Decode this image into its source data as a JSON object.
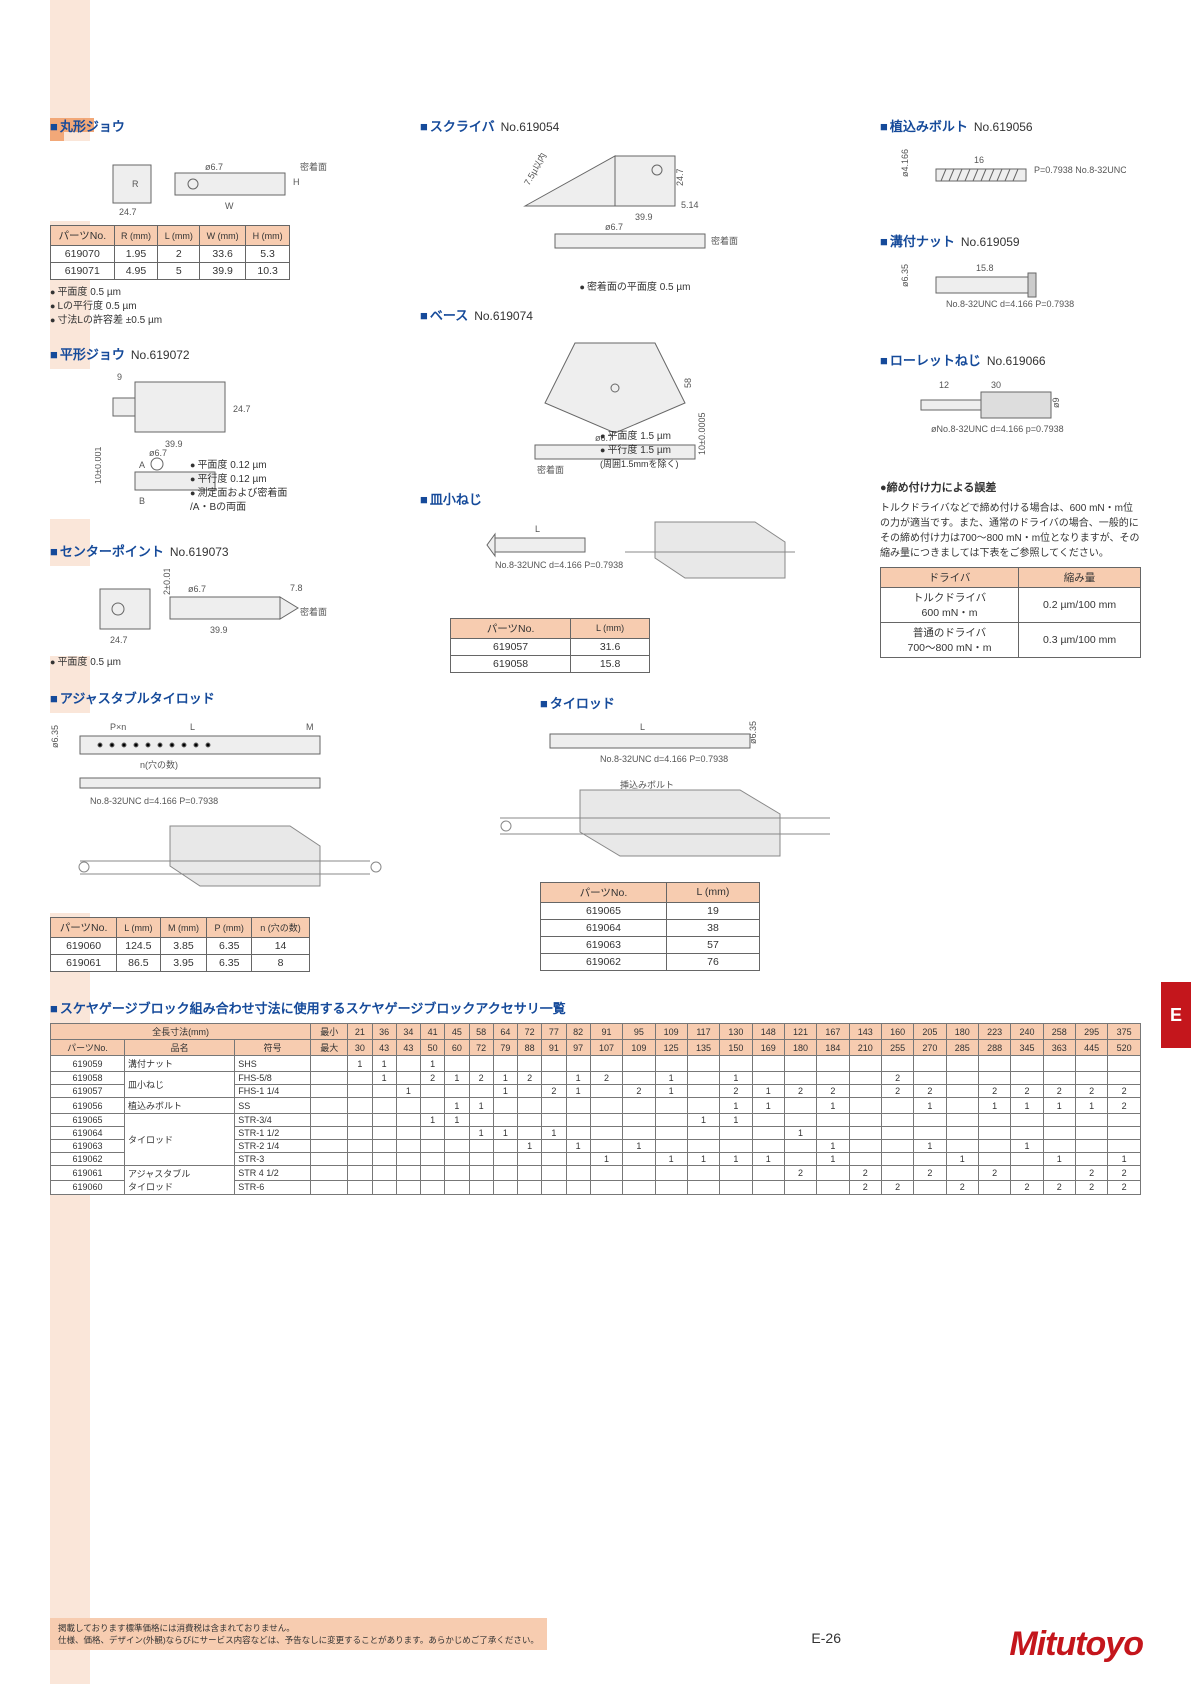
{
  "sections": {
    "maru": {
      "title": "丸形ジョウ"
    },
    "maru_table": {
      "headers": [
        "パーツNo.",
        "R\n(mm)",
        "L\n(mm)",
        "W\n(mm)",
        "H\n(mm)"
      ],
      "rows": [
        [
          "619070",
          "1.95",
          "2",
          "33.6",
          "5.3"
        ],
        [
          "619071",
          "4.95",
          "5",
          "39.9",
          "10.3"
        ]
      ]
    },
    "maru_notes": [
      "平面度 0.5 µm",
      "Lの平行度 0.5 µm",
      "寸法Lの許容差 ±0.5 µm"
    ],
    "hira": {
      "title": "平形ジョウ",
      "partno": "No.619072"
    },
    "hira_notes": [
      "平面度 0.12 µm",
      "平行度 0.12 µm",
      "測定面および密着面\n/A・Bの両面"
    ],
    "center": {
      "title": "センターポイント",
      "partno": "No.619073"
    },
    "center_note": "平面度 0.5 µm",
    "adjrod": {
      "title": "アジャスタブルタイロッド"
    },
    "adjrod_table": {
      "headers": [
        "パーツNo.",
        "L\n(mm)",
        "M\n(mm)",
        "P\n(mm)",
        "n\n(穴の数)"
      ],
      "rows": [
        [
          "619060",
          "124.5",
          "3.85",
          "6.35",
          "14"
        ],
        [
          "619061",
          "86.5",
          "3.95",
          "6.35",
          "8"
        ]
      ]
    },
    "scriber": {
      "title": "スクライバ",
      "partno": "No.619054"
    },
    "scriber_note": "密着面の平面度 0.5 µm",
    "base": {
      "title": "ベース",
      "partno": "No.619074"
    },
    "base_notes": [
      "平面度 1.5 µm",
      "平行度 1.5 µm",
      "(周囲1.5mmを除く)"
    ],
    "sara": {
      "title": "皿小ねじ"
    },
    "sara_spec": "No.8-32UNC\nd=4.166  P=0.7938",
    "sara_table": {
      "headers": [
        "パーツNo.",
        "L\n(mm)"
      ],
      "rows": [
        [
          "619057",
          "31.6"
        ],
        [
          "619058",
          "15.8"
        ]
      ]
    },
    "tierod": {
      "title": "タイロッド"
    },
    "tierod_spec": "No.8-32UNC\nd=4.166  P=0.7938",
    "tierod_table": {
      "headers": [
        "パーツNo.",
        "L (mm)"
      ],
      "rows": [
        [
          "619065",
          "19"
        ],
        [
          "619064",
          "38"
        ],
        [
          "619063",
          "57"
        ],
        [
          "619062",
          "76"
        ]
      ]
    },
    "uekomi": {
      "title": "植込みボルト",
      "partno": "No.619056",
      "spec": "P=0.7938\nNo.8-32UNC",
      "dim": "16"
    },
    "mizo": {
      "title": "溝付ナット",
      "partno": "No.619059",
      "spec": "No.8-32UNC\nd=4.166  P=0.7938",
      "dim": "15.8"
    },
    "knurl": {
      "title": "ローレットねじ",
      "partno": "No.619066",
      "spec": "øNo.8-32UNC\nd=4.166  p=0.7938",
      "dim1": "30",
      "dim2": "12"
    },
    "torque": {
      "title": "締め付け力による誤差",
      "text": "トルクドライバなどで締め付ける場合は、600 mN・m位の力が適当です。また、通常のドライバの場合、一般的にその締め付け力は700～800 mN・m位となりますが、その縮み量につきましては下表をご参照してください。",
      "headers": [
        "ドライバ",
        "縮み量"
      ],
      "rows": [
        [
          "トルクドライバ\n600 mN・m",
          "0.2 µm/100 mm"
        ],
        [
          "普通のドライバ\n700～800 mN・m",
          "0.3 µm/100 mm"
        ]
      ]
    }
  },
  "bigtable": {
    "title": "スケヤゲージブロック組み合わせ寸法に使用するスケヤゲージブロックアクセサリ一覧",
    "hdr_overall": "全長寸法(mm)",
    "hdr_min": "最小",
    "hdr_max": "最大",
    "hdr_pn": "パーツNo.",
    "hdr_name": "品名",
    "hdr_code": "符号",
    "sizes_min": [
      "21",
      "36",
      "34",
      "41",
      "45",
      "58",
      "64",
      "72",
      "77",
      "82",
      "91",
      "95",
      "109",
      "117",
      "130",
      "148",
      "121",
      "167",
      "143",
      "160",
      "205",
      "180",
      "223",
      "240",
      "258",
      "295",
      "375"
    ],
    "sizes_max": [
      "30",
      "43",
      "43",
      "50",
      "60",
      "72",
      "79",
      "88",
      "91",
      "97",
      "107",
      "109",
      "125",
      "135",
      "150",
      "169",
      "180",
      "184",
      "210",
      "255",
      "270",
      "285",
      "288",
      "345",
      "363",
      "445",
      "520"
    ],
    "rows": [
      {
        "pn": "619059",
        "name": "溝付ナット",
        "code": "SHS",
        "vals": [
          "1",
          "1",
          "",
          "1",
          "",
          "",
          "",
          "",
          "",
          "",
          "",
          "",
          "",
          "",
          "",
          "",
          "",
          "",
          "",
          "",
          "",
          "",
          "",
          "",
          "",
          "",
          ""
        ]
      },
      {
        "pn": "619058",
        "name": "皿小ねじ",
        "rowspan": 2,
        "code": "FHS-5/8",
        "vals": [
          "",
          "1",
          "",
          "2",
          "1",
          "2",
          "1",
          "2",
          "",
          "1",
          "2",
          "",
          "1",
          "",
          "1",
          "",
          "",
          "",
          "",
          "2",
          "",
          "",
          "",
          "",
          "",
          "",
          ""
        ]
      },
      {
        "pn": "619057",
        "name": "",
        "code": "FHS-1 1/4",
        "vals": [
          "",
          "",
          "1",
          "",
          "",
          "",
          "1",
          "",
          "2",
          "1",
          "",
          "2",
          "1",
          "",
          "2",
          "1",
          "2",
          "2",
          "",
          "2",
          "2",
          "",
          "2",
          "2",
          "2",
          "2",
          "2"
        ]
      },
      {
        "pn": "619056",
        "name": "植込みボルト",
        "code": "SS",
        "vals": [
          "",
          "",
          "",
          "",
          "1",
          "1",
          "",
          "",
          "",
          "",
          "",
          "",
          "",
          "",
          "1",
          "1",
          "",
          "1",
          "",
          "",
          "1",
          "",
          "1",
          "1",
          "1",
          "1",
          "2"
        ]
      },
      {
        "pn": "619065",
        "name": "タイロッド",
        "rowspan": 4,
        "code": "STR-3/4",
        "vals": [
          "",
          "",
          "",
          "1",
          "1",
          "",
          "",
          "",
          "",
          "",
          "",
          "",
          "",
          "1",
          "1",
          "",
          "",
          "",
          "",
          "",
          "",
          "",
          "",
          "",
          "",
          "",
          ""
        ]
      },
      {
        "pn": "619064",
        "name": "",
        "code": "STR-1 1/2",
        "vals": [
          "",
          "",
          "",
          "",
          "",
          "1",
          "1",
          "",
          "1",
          "",
          "",
          "",
          "",
          "",
          "",
          "",
          "1",
          "",
          "",
          "",
          "",
          "",
          "",
          "",
          "",
          "",
          ""
        ]
      },
      {
        "pn": "619063",
        "name": "",
        "code": "STR-2 1/4",
        "vals": [
          "",
          "",
          "",
          "",
          "",
          "",
          "",
          "1",
          "",
          "1",
          "",
          "1",
          "",
          "",
          "",
          "",
          "",
          "1",
          "",
          "",
          "1",
          "",
          "",
          "1",
          "",
          "",
          ""
        ]
      },
      {
        "pn": "619062",
        "name": "",
        "code": "STR-3",
        "vals": [
          "",
          "",
          "",
          "",
          "",
          "",
          "",
          "",
          "",
          "",
          "1",
          "",
          "1",
          "1",
          "1",
          "1",
          "",
          "1",
          "",
          "",
          "",
          "1",
          "",
          "",
          "1",
          "",
          "1"
        ]
      },
      {
        "pn": "619061",
        "name": "アジャスタブル\nタイロッド",
        "rowspan": 2,
        "code": "STR 4 1/2",
        "vals": [
          "",
          "",
          "",
          "",
          "",
          "",
          "",
          "",
          "",
          "",
          "",
          "",
          "",
          "",
          "",
          "",
          "2",
          "",
          "2",
          "",
          "2",
          "",
          "2",
          "",
          "",
          "2",
          "2"
        ]
      },
      {
        "pn": "619060",
        "name": "",
        "code": "STR-6",
        "vals": [
          "",
          "",
          "",
          "",
          "",
          "",
          "",
          "",
          "",
          "",
          "",
          "",
          "",
          "",
          "",
          "",
          "",
          "",
          "2",
          "2",
          "",
          "2",
          "",
          "2",
          "2",
          "2",
          "2"
        ]
      }
    ]
  },
  "footer": {
    "disclaimer1": "掲載しております標準価格には消費税は含まれておりません。",
    "disclaimer2": "仕様、価格、デザイン(外観)ならびにサービス内容などは、予告なしに変更することがあります。あらかじめご了承ください。",
    "page": "E-26",
    "logo": "Mitutoyo",
    "tab": "E"
  },
  "diagram_labels": {
    "maru": {
      "w": "W",
      "h": "H",
      "dia": "ø6.7",
      "adh": "密着面",
      "base": "24.7",
      "r": "R"
    },
    "hira": {
      "l": "39.9",
      "h": "24.7",
      "t": "9",
      "dia": "ø6.7",
      "tol": "10±0.001",
      "a": "A",
      "b": "B"
    },
    "center": {
      "w": "24.7",
      "l": "39.9",
      "dia": "ø6.7",
      "tol": "2±0.01",
      "h": "7.8",
      "adh": "密着面"
    },
    "scriber": {
      "l": "39.9",
      "h": "24.7",
      "b": "5.14",
      "tip": "7.5µ以内",
      "dia": "ø6.7",
      "adh": "密着面"
    },
    "base": {
      "h": "58",
      "tol": "10±0.0005",
      "dia": "ø6.7",
      "adh": "密着面"
    },
    "sara": {
      "l": "L"
    },
    "adjrod": {
      "l": "L",
      "m": "M",
      "p": "P×n",
      "n": "n(穴の数)",
      "d": "ø6.35",
      "spec": "No.8-32UNC\nd=4.166 P=0.7938"
    },
    "tierod": {
      "l": "L",
      "d": "ø6.35",
      "ins": "挿込みボルト"
    },
    "uekomi": {
      "d": "ø4.166"
    },
    "mizo": {
      "d": "ø6.35"
    },
    "knurl": {
      "d": "ø9"
    }
  }
}
